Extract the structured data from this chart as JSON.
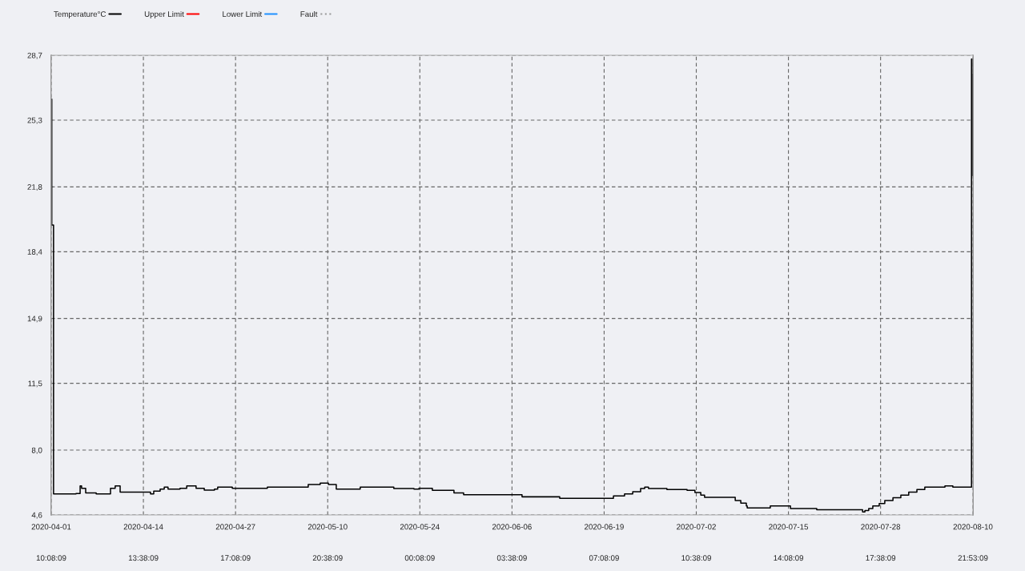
{
  "chart_data": {
    "type": "step",
    "x": [
      "2020-04-01T10:08",
      "2020-04-01T12:00",
      "2020-04-01T18:00",
      "2020-04-04T23:00",
      "2020-04-05T13:00",
      "2020-04-05T18:00",
      "2020-04-06T08:00",
      "2020-04-07T00:00",
      "2020-04-07T20:00",
      "2020-04-09T21:00",
      "2020-04-10T13:00",
      "2020-04-11T06:00",
      "2020-04-15T14:00",
      "2020-04-16T01:00",
      "2020-04-16T23:00",
      "2020-04-17T13:00",
      "2020-04-18T02:00",
      "2020-04-19T19:00",
      "2020-04-20T18:00",
      "2020-04-22T02:00",
      "2020-04-23T06:00",
      "2020-04-24T17:00",
      "2020-04-25T04:00",
      "2020-04-27T06:00",
      "2020-05-02T06:00",
      "2020-05-08T02:00",
      "2020-05-09T19:00",
      "2020-05-10T23:00",
      "2020-05-12T02:00",
      "2020-05-15T12:00",
      "2020-05-20T07:00",
      "2020-05-23T04:00",
      "2020-05-23T21:00",
      "2020-05-24T07:00",
      "2020-05-25T19:00",
      "2020-05-28T21:00",
      "2020-05-30T06:00",
      "2020-06-07T14:00",
      "2020-06-12T23:00",
      "2020-06-19T09:00",
      "2020-06-20T15:00",
      "2020-06-22T05:00",
      "2020-06-23T09:00",
      "2020-06-24T12:00",
      "2020-06-25T02:00",
      "2020-06-25T15:00",
      "2020-06-28T06:00",
      "2020-07-01T03:00",
      "2020-07-02T06:00",
      "2020-07-03T02:00",
      "2020-07-03T15:00",
      "2020-07-08T00:00",
      "2020-07-08T19:00",
      "2020-07-09T14:00",
      "2020-07-09T17:00",
      "2020-07-13T00:00",
      "2020-07-15T21:00",
      "2020-07-19T15:00",
      "2020-07-26T04:00",
      "2020-07-26T12:00",
      "2020-07-27T01:00",
      "2020-07-27T15:00",
      "2020-07-28T13:00",
      "2020-07-29T08:00",
      "2020-07-30T12:00",
      "2020-07-31T15:00",
      "2020-08-01T18:00",
      "2020-08-02T22:00",
      "2020-08-04T01:00",
      "2020-08-05T18:00",
      "2020-08-06T22:00",
      "2020-08-08T01:00",
      "2020-08-10T14:00",
      "2020-08-10T17:00",
      "2020-08-10T19:00",
      "2020-08-10T21:53"
    ],
    "series": [
      {
        "name": "Temperature°C",
        "color": "#000000",
        "values": [
          26.4,
          19.8,
          5.7,
          5.72,
          6.12,
          6.0,
          5.75,
          5.75,
          5.7,
          6.0,
          6.12,
          5.8,
          5.7,
          5.85,
          5.95,
          6.06,
          5.95,
          6.0,
          6.12,
          6.0,
          5.9,
          5.95,
          6.06,
          6.0,
          6.06,
          6.2,
          6.27,
          6.2,
          5.95,
          6.06,
          5.99,
          5.95,
          6.0,
          6.0,
          5.89,
          5.75,
          5.66,
          5.55,
          5.47,
          5.47,
          5.6,
          5.7,
          5.82,
          5.99,
          6.06,
          5.99,
          5.93,
          5.89,
          5.78,
          5.64,
          5.52,
          5.36,
          5.22,
          5.07,
          4.97,
          5.07,
          4.94,
          4.87,
          4.76,
          4.83,
          4.94,
          5.07,
          5.2,
          5.36,
          5.5,
          5.64,
          5.8,
          5.93,
          6.06,
          6.06,
          6.12,
          6.06,
          6.06,
          28.5,
          22.4,
          27.7
        ]
      },
      {
        "name": "Upper Limit",
        "color": "#ff0000",
        "values": [
          null,
          null,
          null,
          null,
          null,
          null,
          null,
          null,
          null,
          null,
          null,
          null,
          null,
          null,
          null,
          null,
          null,
          null,
          null,
          null,
          null,
          null,
          null,
          null,
          null,
          null,
          null,
          null,
          null,
          null,
          null,
          null,
          null,
          null,
          null,
          null,
          null,
          null,
          null,
          null,
          null,
          null,
          null,
          null,
          null,
          null,
          null,
          null,
          null,
          null,
          null,
          null,
          null,
          null,
          null,
          null,
          null,
          null,
          null,
          null,
          null,
          null,
          null,
          null,
          null,
          null,
          null,
          null,
          null,
          null,
          null,
          null,
          null,
          null,
          null,
          null
        ]
      },
      {
        "name": "Lower Limit",
        "color": "#1e90ff",
        "values": [
          null,
          null,
          null,
          null,
          null,
          null,
          null,
          null,
          null,
          null,
          null,
          null,
          null,
          null,
          null,
          null,
          null,
          null,
          null,
          null,
          null,
          null,
          null,
          null,
          null,
          null,
          null,
          null,
          null,
          null,
          null,
          null,
          null,
          null,
          null,
          null,
          null,
          null,
          null,
          null,
          null,
          null,
          null,
          null,
          null,
          null,
          null,
          null,
          null,
          null,
          null,
          null,
          null,
          null,
          null,
          null,
          null,
          null,
          null,
          null,
          null,
          null,
          null,
          null,
          null,
          null,
          null,
          null,
          null,
          null,
          null,
          null,
          null,
          null,
          null,
          null
        ]
      },
      {
        "name": "Fault",
        "color": "#999999",
        "line_style": "dotted",
        "values": [
          null,
          null,
          null,
          null,
          null,
          null,
          null,
          null,
          null,
          null,
          null,
          null,
          null,
          null,
          null,
          null,
          null,
          null,
          null,
          null,
          null,
          null,
          null,
          null,
          null,
          null,
          null,
          null,
          null,
          null,
          null,
          null,
          null,
          null,
          null,
          null,
          null,
          null,
          null,
          null,
          null,
          null,
          null,
          null,
          null,
          null,
          null,
          null,
          null,
          null,
          null,
          null,
          null,
          null,
          null,
          null,
          null,
          null,
          null,
          null,
          null,
          null,
          null,
          null,
          null,
          null,
          null,
          null,
          null,
          null,
          null,
          null,
          null,
          null,
          null,
          null
        ]
      }
    ],
    "xlim": [
      "2020-04-01T10:08",
      "2020-08-10T21:53"
    ],
    "xticks": [
      {
        "value": "2020-04-01T10:08",
        "label": "2020-04-01"
      },
      {
        "value": "2020-04-14T13:38",
        "label": "2020-04-14"
      },
      {
        "value": "2020-04-27T17:08",
        "label": "2020-04-27"
      },
      {
        "value": "2020-05-10T20:38",
        "label": "2020-05-10"
      },
      {
        "value": "2020-05-24T00:08",
        "label": "2020-05-24"
      },
      {
        "value": "2020-06-06T03:38",
        "label": "2020-06-06"
      },
      {
        "value": "2020-06-19T07:08",
        "label": "2020-06-19"
      },
      {
        "value": "2020-07-02T10:38",
        "label": "2020-07-02"
      },
      {
        "value": "2020-07-15T14:08",
        "label": "2020-07-15"
      },
      {
        "value": "2020-07-28T17:38",
        "label": "2020-07-28"
      },
      {
        "value": "2020-08-10T21:53",
        "label": "2020-08-10"
      }
    ],
    "x2lim": [
      "2020-04-01T10:08",
      "2020-08-10T21:53"
    ],
    "x2ticks": [
      {
        "value": "2020-04-01T10:08",
        "label": "10:08:09"
      },
      {
        "value": "2020-04-14T13:38",
        "label": "13:38:09"
      },
      {
        "value": "2020-04-27T17:08",
        "label": "17:08:09"
      },
      {
        "value": "2020-05-10T20:38",
        "label": "20:38:09"
      },
      {
        "value": "2020-05-24T00:08",
        "label": "00:08:09"
      },
      {
        "value": "2020-06-06T03:38",
        "label": "03:38:09"
      },
      {
        "value": "2020-06-19T07:08",
        "label": "07:08:09"
      },
      {
        "value": "2020-07-02T10:38",
        "label": "10:38:09"
      },
      {
        "value": "2020-07-15T14:08",
        "label": "14:08:09"
      },
      {
        "value": "2020-07-28T17:38",
        "label": "17:38:09"
      },
      {
        "value": "2020-08-10T21:53",
        "label": "21:53:09"
      }
    ],
    "ylim": [
      4.6,
      28.7
    ],
    "yticks": [
      {
        "value": 4.6,
        "label": "4,6"
      },
      {
        "value": 8.0,
        "label": "8,0"
      },
      {
        "value": 11.5,
        "label": "11,5"
      },
      {
        "value": 14.9,
        "label": "14,9"
      },
      {
        "value": 18.4,
        "label": "18,4"
      },
      {
        "value": 21.8,
        "label": "21,8"
      },
      {
        "value": 25.3,
        "label": "25,3"
      },
      {
        "value": 28.7,
        "label": "28,7"
      }
    ],
    "grid": true,
    "legend": "top left",
    "line_style": "solid"
  }
}
